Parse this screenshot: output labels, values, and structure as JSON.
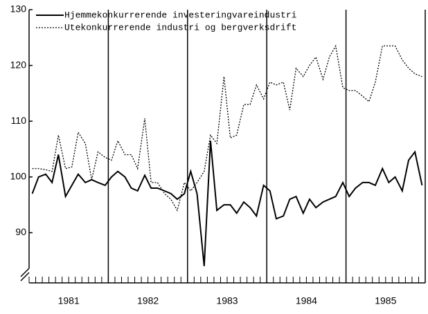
{
  "chart_data": {
    "type": "line",
    "x": [
      1981.04,
      1981.12,
      1981.21,
      1981.29,
      1981.37,
      1981.46,
      1981.54,
      1981.62,
      1981.71,
      1981.79,
      1981.87,
      1981.96,
      1982.04,
      1982.12,
      1982.21,
      1982.29,
      1982.37,
      1982.46,
      1982.54,
      1982.62,
      1982.71,
      1982.79,
      1982.87,
      1982.96,
      1983.04,
      1983.12,
      1983.21,
      1983.29,
      1983.37,
      1983.46,
      1983.54,
      1983.62,
      1983.71,
      1983.79,
      1983.87,
      1983.96,
      1984.04,
      1984.12,
      1984.21,
      1984.29,
      1984.37,
      1984.46,
      1984.54,
      1984.62,
      1984.71,
      1984.79,
      1984.87,
      1984.96,
      1985.04,
      1985.12,
      1985.21,
      1985.29,
      1985.37,
      1985.46,
      1985.54,
      1985.62,
      1985.71,
      1985.79,
      1985.87,
      1985.96
    ],
    "series": [
      {
        "name": "Hjemmekonkurrerende investeringvareindustri",
        "color": "#000000",
        "dash": "solid",
        "values": [
          97,
          100,
          100.5,
          99,
          104,
          96.5,
          98.5,
          100.5,
          99,
          99.5,
          99,
          98.5,
          100,
          101,
          100,
          98,
          97.5,
          100.3,
          98,
          98,
          97.5,
          97,
          96,
          97,
          101,
          97,
          84,
          106.5,
          94,
          95,
          95,
          93.5,
          95.5,
          94.5,
          93,
          98.5,
          97.5,
          92.5,
          93,
          96,
          96.5,
          93.5,
          96,
          94.5,
          95.5,
          96,
          96.5,
          99,
          96.5,
          98,
          99,
          99,
          98.5,
          101.5,
          99,
          100,
          97.5,
          103,
          104.5,
          98.5
        ]
      },
      {
        "name": "Utekonkurrerende industri og bergverksdrift",
        "color": "#000000",
        "dash": "dotted",
        "values": [
          101.5,
          101.5,
          101.3,
          101,
          107.5,
          101.5,
          101.8,
          108,
          106,
          99.5,
          104.5,
          103.5,
          103,
          106.5,
          104,
          104,
          101.5,
          110.5,
          99,
          99,
          97,
          96,
          94,
          99,
          97.5,
          99,
          101,
          107.5,
          106,
          118,
          107,
          107.5,
          113,
          113,
          116.5,
          114,
          117,
          116.5,
          117,
          112,
          119.5,
          118,
          120,
          121.5,
          117.5,
          121.5,
          123.5,
          116,
          115.5,
          115.5,
          114.5,
          113.5,
          117,
          123.5,
          123.5,
          123.5,
          121,
          119.5,
          118.5,
          118
        ]
      }
    ],
    "xlim": [
      1981,
      1986
    ],
    "xticks": [
      {
        "value": 1981.5,
        "label": "1981"
      },
      {
        "value": 1982.5,
        "label": "1982"
      },
      {
        "value": 1983.5,
        "label": "1983"
      },
      {
        "value": 1984.5,
        "label": "1984"
      },
      {
        "value": 1985.5,
        "label": "1985"
      }
    ],
    "ylim": [
      81,
      130
    ],
    "yticks": [
      90,
      100,
      110,
      120,
      130
    ],
    "legend": "upper left"
  }
}
